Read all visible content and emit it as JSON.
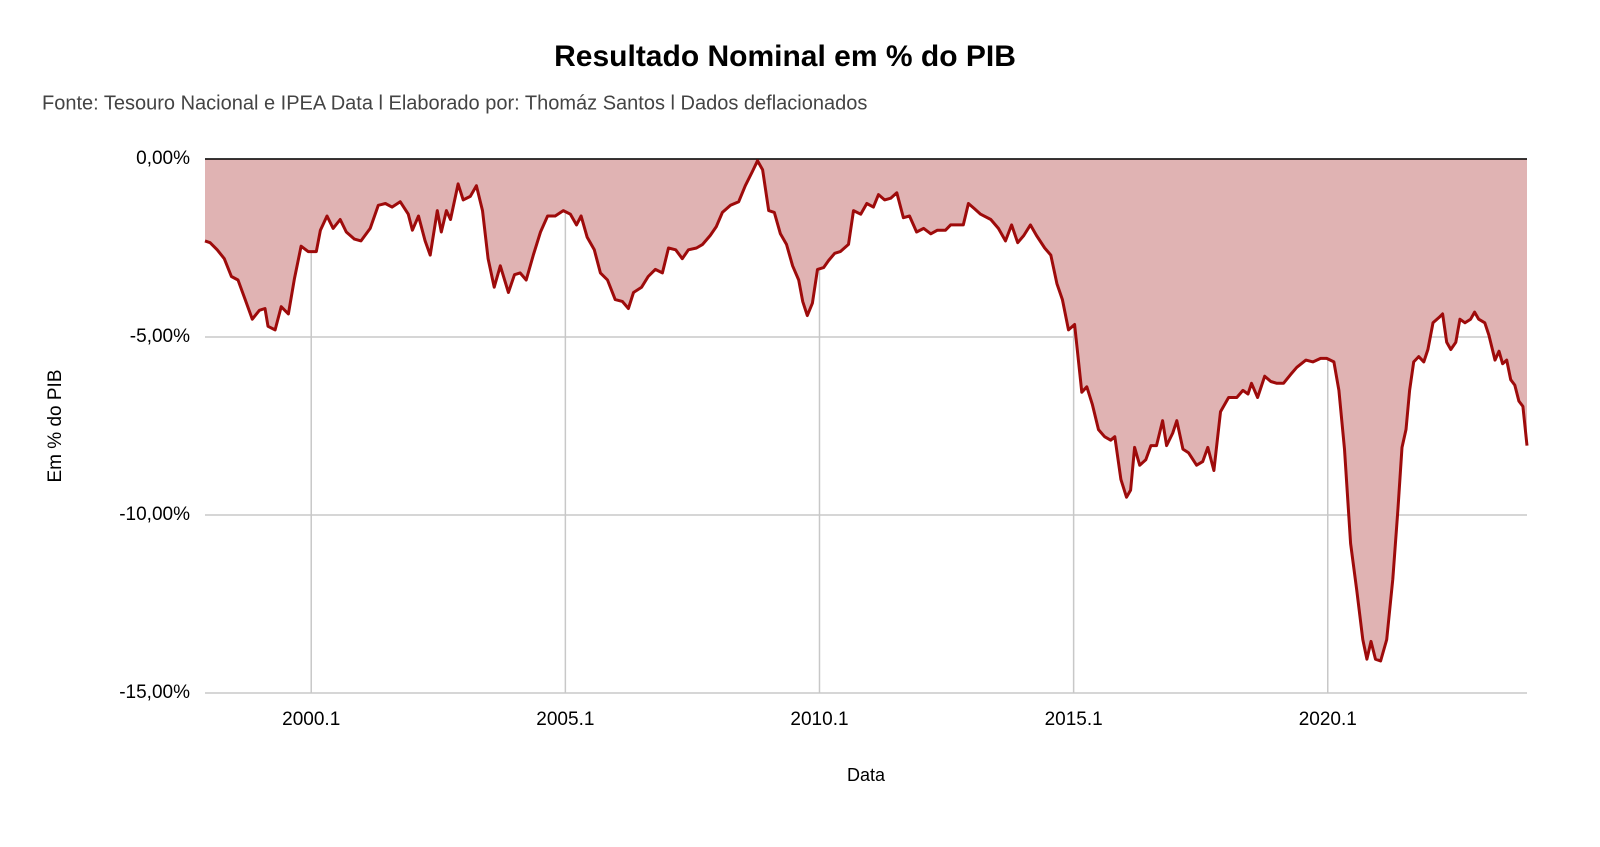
{
  "chart_data": {
    "type": "area",
    "title": "Resultado Nominal em % do PIB",
    "subtitle": "Fonte: Tesouro Nacional e IPEA Data l Elaborado por: Thomáz Santos l Dados deflacionados",
    "x_label": "Data",
    "y_label": "Em % do PIB",
    "color": "#9e0b0b",
    "area_color": "#e0b3b3",
    "grid": true,
    "xlim": [
      1997.91,
      2023.92
    ],
    "xticks": [
      {
        "value": 2000,
        "label": "2000.1"
      },
      {
        "value": 2005,
        "label": "2005.1"
      },
      {
        "value": 2010,
        "label": "2010.1"
      },
      {
        "value": 2015,
        "label": "2015.1"
      },
      {
        "value": 2020,
        "label": "2020.1"
      }
    ],
    "ylim": [
      -15,
      0
    ],
    "yticks": [
      {
        "value": 0,
        "label": "0,00%"
      },
      {
        "value": -5,
        "label": "-5,00%"
      },
      {
        "value": -10,
        "label": "-10,00%"
      },
      {
        "value": -15,
        "label": "-15,00%"
      }
    ],
    "x": [
      1997.91,
      1998.01,
      1998.15,
      1998.29,
      1998.43,
      1998.56,
      1998.7,
      1998.84,
      1998.98,
      1999.09,
      1999.15,
      1999.29,
      1999.41,
      1999.55,
      1999.67,
      1999.8,
      1999.94,
      2000.1,
      2000.18,
      2000.31,
      2000.43,
      2000.57,
      2000.69,
      2000.85,
      2000.98,
      2001.16,
      2001.32,
      2001.46,
      2001.59,
      2001.75,
      2001.91,
      2001.99,
      2002.11,
      2002.24,
      2002.34,
      2002.48,
      2002.56,
      2002.66,
      2002.74,
      2002.89,
      2002.99,
      2003.13,
      2003.25,
      2003.37,
      2003.48,
      2003.6,
      2003.72,
      2003.88,
      2004.0,
      2004.11,
      2004.23,
      2004.37,
      2004.51,
      2004.65,
      2004.8,
      2004.96,
      2005.1,
      2005.22,
      2005.31,
      2005.43,
      2005.57,
      2005.69,
      2005.83,
      2005.98,
      2006.12,
      2006.24,
      2006.34,
      2006.5,
      2006.63,
      2006.77,
      2006.91,
      2007.03,
      2007.17,
      2007.3,
      2007.42,
      2007.58,
      2007.7,
      2007.85,
      2007.97,
      2008.09,
      2008.25,
      2008.41,
      2008.54,
      2008.68,
      2008.78,
      2008.88,
      2009.0,
      2009.11,
      2009.23,
      2009.35,
      2009.47,
      2009.59,
      2009.67,
      2009.76,
      2009.86,
      2009.96,
      2010.08,
      2010.18,
      2010.3,
      2010.41,
      2010.57,
      2010.67,
      2010.81,
      2010.93,
      2011.06,
      2011.16,
      2011.28,
      2011.4,
      2011.52,
      2011.65,
      2011.77,
      2011.91,
      2012.05,
      2012.19,
      2012.32,
      2012.48,
      2012.58,
      2012.72,
      2012.83,
      2012.93,
      2013.05,
      2013.17,
      2013.37,
      2013.52,
      2013.66,
      2013.78,
      2013.9,
      2014.02,
      2014.15,
      2014.27,
      2014.43,
      2014.55,
      2014.67,
      2014.78,
      2014.9,
      2015.02,
      2015.16,
      2015.26,
      2015.37,
      2015.49,
      2015.61,
      2015.73,
      2015.81,
      2015.93,
      2016.04,
      2016.12,
      2016.2,
      2016.3,
      2016.42,
      2016.52,
      2016.63,
      2016.75,
      2016.83,
      2016.95,
      2017.03,
      2017.15,
      2017.26,
      2017.42,
      2017.54,
      2017.64,
      2017.76,
      2017.89,
      2018.05,
      2018.21,
      2018.33,
      2018.43,
      2018.5,
      2018.62,
      2018.76,
      2018.88,
      2019.0,
      2019.13,
      2019.27,
      2019.39,
      2019.57,
      2019.71,
      2019.86,
      2019.98,
      2020.12,
      2020.22,
      2020.33,
      2020.45,
      2020.57,
      2020.69,
      2020.77,
      2020.85,
      2020.94,
      2021.04,
      2021.16,
      2021.28,
      2021.38,
      2021.46,
      2021.54,
      2021.61,
      2021.69,
      2021.79,
      2021.89,
      2021.97,
      2022.07,
      2022.19,
      2022.26,
      2022.34,
      2022.42,
      2022.52,
      2022.6,
      2022.7,
      2022.81,
      2022.89,
      2022.97,
      2023.09,
      2023.17,
      2023.29,
      2023.37,
      2023.44,
      2023.52,
      2023.6,
      2023.68,
      2023.76,
      2023.84,
      2023.92
    ],
    "values": [
      -2.3,
      -2.35,
      -2.55,
      -2.8,
      -3.3,
      -3.4,
      -3.95,
      -4.5,
      -4.25,
      -4.2,
      -4.7,
      -4.8,
      -4.15,
      -4.35,
      -3.35,
      -2.45,
      -2.6,
      -2.6,
      -2.0,
      -1.6,
      -1.95,
      -1.7,
      -2.05,
      -2.25,
      -2.3,
      -1.95,
      -1.3,
      -1.25,
      -1.35,
      -1.2,
      -1.55,
      -2.0,
      -1.6,
      -2.3,
      -2.7,
      -1.45,
      -2.05,
      -1.45,
      -1.7,
      -0.7,
      -1.15,
      -1.05,
      -0.75,
      -1.45,
      -2.8,
      -3.6,
      -3.0,
      -3.75,
      -3.25,
      -3.2,
      -3.4,
      -2.7,
      -2.05,
      -1.6,
      -1.6,
      -1.45,
      -1.55,
      -1.85,
      -1.6,
      -2.2,
      -2.55,
      -3.2,
      -3.4,
      -3.95,
      -4.0,
      -4.2,
      -3.75,
      -3.6,
      -3.3,
      -3.1,
      -3.2,
      -2.5,
      -2.55,
      -2.8,
      -2.55,
      -2.5,
      -2.4,
      -2.15,
      -1.9,
      -1.5,
      -1.3,
      -1.2,
      -0.75,
      -0.35,
      -0.05,
      -0.3,
      -1.45,
      -1.5,
      -2.1,
      -2.4,
      -3.0,
      -3.4,
      -4.0,
      -4.4,
      -4.05,
      -3.1,
      -3.05,
      -2.85,
      -2.65,
      -2.6,
      -2.4,
      -1.45,
      -1.55,
      -1.25,
      -1.35,
      -1.0,
      -1.15,
      -1.1,
      -0.95,
      -1.65,
      -1.6,
      -2.05,
      -1.95,
      -2.1,
      -2.0,
      -2.0,
      -1.85,
      -1.85,
      -1.85,
      -1.25,
      -1.4,
      -1.55,
      -1.7,
      -1.95,
      -2.3,
      -1.85,
      -2.35,
      -2.15,
      -1.85,
      -2.15,
      -2.5,
      -2.7,
      -3.5,
      -3.95,
      -4.8,
      -4.65,
      -6.55,
      -6.4,
      -6.9,
      -7.6,
      -7.8,
      -7.9,
      -7.8,
      -9.0,
      -9.5,
      -9.3,
      -8.1,
      -8.6,
      -8.45,
      -8.05,
      -8.05,
      -7.35,
      -8.05,
      -7.7,
      -7.35,
      -8.15,
      -8.25,
      -8.6,
      -8.5,
      -8.1,
      -8.75,
      -7.1,
      -6.7,
      -6.7,
      -6.5,
      -6.6,
      -6.3,
      -6.7,
      -6.1,
      -6.25,
      -6.3,
      -6.3,
      -6.05,
      -5.85,
      -5.65,
      -5.7,
      -5.6,
      -5.6,
      -5.7,
      -6.5,
      -8.15,
      -10.8,
      -12.1,
      -13.5,
      -14.05,
      -13.55,
      -14.05,
      -14.1,
      -13.5,
      -11.8,
      -9.85,
      -8.1,
      -7.6,
      -6.5,
      -5.7,
      -5.55,
      -5.7,
      -5.35,
      -4.6,
      -4.45,
      -4.35,
      -5.15,
      -5.35,
      -5.15,
      -4.5,
      -4.6,
      -4.5,
      -4.3,
      -4.5,
      -4.6,
      -4.95,
      -5.65,
      -5.4,
      -5.75,
      -5.65,
      -6.2,
      -6.35,
      -6.8,
      -6.95,
      -8.05
    ]
  }
}
